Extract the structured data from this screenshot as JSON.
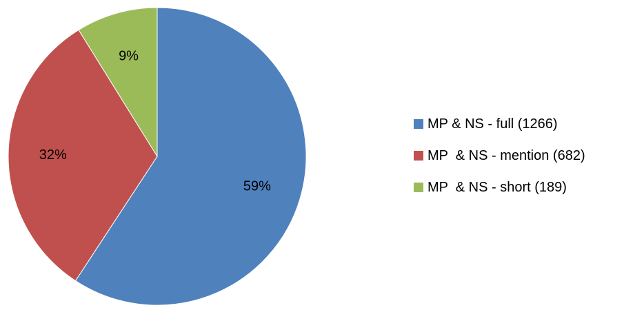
{
  "chart_data": {
    "type": "pie",
    "title": "",
    "slices": [
      {
        "label": "MP & NS - full (1266)",
        "value": 1266,
        "percent_label": "59%",
        "color": "#4F81BD"
      },
      {
        "label": "MP  & NS - mention (682)",
        "value": 682,
        "percent_label": "32%",
        "color": "#C0504D"
      },
      {
        "label": "MP  & NS - short (189)",
        "value": 189,
        "percent_label": "9%",
        "color": "#9BBB59"
      }
    ],
    "start_angle": "12 o'clock",
    "direction": "clockwise",
    "legend_position": "right"
  }
}
